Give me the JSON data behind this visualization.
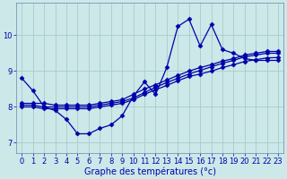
{
  "xlabel": "Graphe des températures (°c)",
  "bg_color": "#cce8e8",
  "grid_color": "#aacccc",
  "line_color": "#0000aa",
  "spine_color": "#6688aa",
  "xlim": [
    -0.5,
    23.5
  ],
  "ylim": [
    6.7,
    10.9
  ],
  "yticks": [
    7,
    8,
    9,
    10
  ],
  "xticks": [
    0,
    1,
    2,
    3,
    4,
    5,
    6,
    7,
    8,
    9,
    10,
    11,
    12,
    13,
    14,
    15,
    16,
    17,
    18,
    19,
    20,
    21,
    22,
    23
  ],
  "series": [
    {
      "x": [
        0,
        1,
        2,
        3,
        4,
        5,
        6,
        7,
        8,
        9,
        10,
        11,
        12,
        13,
        14,
        15,
        16,
        17,
        18,
        19,
        20,
        21,
        22,
        23
      ],
      "y": [
        8.8,
        8.45,
        8.0,
        7.9,
        7.65,
        7.25,
        7.25,
        7.4,
        7.5,
        7.75,
        8.3,
        8.7,
        8.35,
        9.1,
        10.25,
        10.45,
        9.7,
        10.3,
        9.6,
        9.5,
        9.35,
        9.3,
        9.3,
        9.3
      ]
    },
    {
      "x": [
        0,
        1,
        2,
        3,
        4,
        5,
        6,
        7,
        8,
        9,
        10,
        11,
        12,
        13,
        14,
        15,
        16,
        17,
        18,
        19,
        20,
        21,
        22,
        23
      ],
      "y": [
        8.1,
        8.1,
        8.1,
        8.05,
        8.05,
        8.05,
        8.05,
        8.1,
        8.15,
        8.2,
        8.35,
        8.5,
        8.62,
        8.75,
        8.88,
        9.0,
        9.1,
        9.18,
        9.28,
        9.35,
        9.45,
        9.5,
        9.55,
        9.55
      ]
    },
    {
      "x": [
        0,
        1,
        2,
        3,
        4,
        5,
        6,
        7,
        8,
        9,
        10,
        11,
        12,
        13,
        14,
        15,
        16,
        17,
        18,
        19,
        20,
        21,
        22,
        23
      ],
      "y": [
        8.05,
        8.05,
        8.0,
        8.0,
        8.0,
        8.0,
        8.0,
        8.05,
        8.1,
        8.15,
        8.25,
        8.4,
        8.55,
        8.68,
        8.8,
        8.92,
        9.02,
        9.12,
        9.22,
        9.3,
        9.4,
        9.45,
        9.5,
        9.5
      ]
    },
    {
      "x": [
        0,
        1,
        2,
        3,
        4,
        5,
        6,
        7,
        8,
        9,
        10,
        11,
        12,
        13,
        14,
        15,
        16,
        17,
        18,
        19,
        20,
        21,
        22,
        23
      ],
      "y": [
        8.0,
        8.0,
        7.95,
        7.95,
        7.95,
        7.95,
        7.95,
        8.0,
        8.05,
        8.1,
        8.2,
        8.35,
        8.48,
        8.6,
        8.73,
        8.85,
        8.92,
        9.0,
        9.1,
        9.18,
        9.27,
        9.32,
        9.37,
        9.38
      ]
    }
  ],
  "marker": "D",
  "markersize": 2.5,
  "linewidth": 0.9,
  "xlabel_fontsize": 7,
  "tick_fontsize": 6
}
